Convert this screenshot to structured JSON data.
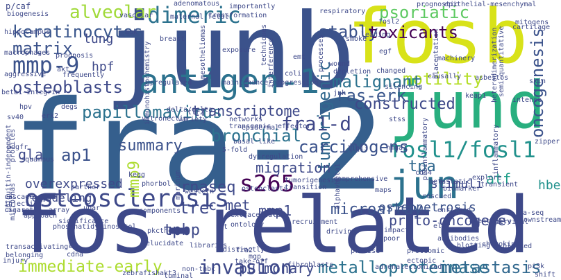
{
  "words": [
    {
      "text": "fra-2",
      "color": "#355f8d"
    },
    {
      "text": "fos-related",
      "color": "#3e4989"
    },
    {
      "text": "junb",
      "color": "#3b528b"
    },
    {
      "text": "fosb",
      "color": "#d8e219"
    },
    {
      "text": "jund",
      "color": "#29af7f"
    },
    {
      "text": "antigen-1",
      "color": "#2c728e"
    },
    {
      "text": "jun",
      "color": "#2c728e"
    },
    {
      "text": "fosl1/fosl1",
      "color": "#21918c"
    },
    {
      "text": "osteosclerosis",
      "color": "#3e4989"
    },
    {
      "text": "dimeric",
      "color": "#2c728e"
    },
    {
      "text": "fra1-d",
      "color": "#3f4788"
    },
    {
      "text": "s265",
      "color": "#440154"
    },
    {
      "text": "mmp-9",
      "color": "#3b528b"
    },
    {
      "text": "alveolar",
      "color": "#a0da39"
    },
    {
      "text": "psoriatic",
      "color": "#5ec962"
    },
    {
      "text": "motility",
      "color": "#b5de2b"
    },
    {
      "text": "tumorigenic",
      "color": "#31688e"
    },
    {
      "text": "invasion",
      "color": "#3e4989"
    },
    {
      "text": "immediate-early",
      "color": "#addc30"
    },
    {
      "text": "metalloproteinase",
      "color": "#2c728e"
    },
    {
      "text": "metastasis",
      "color": "#31688e"
    },
    {
      "text": "keratinocytes",
      "color": "#39568c"
    },
    {
      "text": "stably",
      "color": "#3b528b"
    },
    {
      "text": "toxicants",
      "color": "#440154"
    },
    {
      "text": "matrix",
      "color": "#3b528b"
    },
    {
      "text": "oncogenesis",
      "color": "#3b528b"
    },
    {
      "text": "osteoblasts",
      "color": "#3e4989"
    },
    {
      "text": "carcinogens",
      "color": "#3b528b"
    },
    {
      "text": "papillomavirus",
      "color": "#2c728e"
    },
    {
      "text": "ras-erk",
      "color": "#39568c"
    },
    {
      "text": "malignant",
      "color": "#2c728e"
    },
    {
      "text": "tre",
      "color": "#3e4989"
    },
    {
      "text": "tpa",
      "color": "#31688e"
    },
    {
      "text": "atf",
      "color": "#1f9e89"
    },
    {
      "text": "ap1",
      "color": "#3b528b"
    },
    {
      "text": "transcriptome",
      "color": "#3e4989"
    },
    {
      "text": "microarray",
      "color": "#3b528b"
    },
    {
      "text": "migration",
      "color": "#3e4989"
    },
    {
      "text": "pulmonary",
      "color": "#3e4989"
    },
    {
      "text": "tpbp",
      "color": "#3e4989"
    },
    {
      "text": "bronchial",
      "color": "#2c728e"
    },
    {
      "text": "proto-oncogene",
      "color": "#3e4989"
    },
    {
      "text": "constructed",
      "color": "#3e4989"
    },
    {
      "text": "mmp9",
      "color": "#addc30"
    },
    {
      "text": "summary",
      "color": "#3b528b"
    },
    {
      "text": "rnaseq",
      "color": "#3e4989"
    },
    {
      "text": "c-met",
      "color": "#3e4989"
    },
    {
      "text": "mmp1",
      "color": "#3e4989"
    },
    {
      "text": "hbe",
      "color": "#21918c"
    },
    {
      "text": "stimuli",
      "color": "#3e4989"
    },
    {
      "text": "osteopetrosis",
      "color": "#3b528b"
    },
    {
      "text": "lung",
      "color": "#3e4989"
    },
    {
      "text": "gla",
      "color": "#3e4989"
    },
    {
      "text": "hpf",
      "color": "#3e4989"
    },
    {
      "text": "overexpressed",
      "color": "#3e4989"
    },
    {
      "text": "remodeling",
      "color": "#3e4989"
    },
    {
      "text": "adenomatous",
      "color": "#3e4989"
    },
    {
      "text": "prognostic",
      "color": "#3e4989"
    },
    {
      "text": "epithelial-mesenchymal",
      "color": "#3e4989"
    },
    {
      "text": "p/caf",
      "color": "#3e4989"
    },
    {
      "text": "biogenesis",
      "color": "#3e4989"
    },
    {
      "text": "vascular",
      "color": "#3e4989"
    },
    {
      "text": "maternal-fetal",
      "color": "#3e4989"
    },
    {
      "text": "importantly",
      "color": "#3e4989"
    },
    {
      "text": "respiratory",
      "color": "#3e4989"
    },
    {
      "text": "cartilage",
      "color": "#3e4989"
    },
    {
      "text": "transformation",
      "color": "#3e4989"
    },
    {
      "text": "mitogens",
      "color": "#3e4989"
    },
    {
      "text": "hippocampus",
      "color": "#3e4989"
    },
    {
      "text": "mek",
      "color": "#3e4989"
    },
    {
      "text": "breast",
      "color": "#3e4989"
    },
    {
      "text": "mesotheliomas",
      "color": "#3e4989"
    },
    {
      "text": "techniques",
      "color": "#3e4989"
    },
    {
      "text": "fosl2",
      "color": "#3e4989"
    },
    {
      "text": "smoke",
      "color": "#3e4989"
    },
    {
      "text": "leading",
      "color": "#3e4989"
    },
    {
      "text": "egf",
      "color": "#3e4989"
    },
    {
      "text": "placentation",
      "color": "#3e4989"
    },
    {
      "text": "heterodimerization",
      "color": "#3e4989"
    },
    {
      "text": "semi-quantitative",
      "color": "#3e4989"
    },
    {
      "text": "macrophages",
      "color": "#3e4989"
    },
    {
      "text": "prognosis",
      "color": "#3e4989"
    },
    {
      "text": "exposure",
      "color": "#3e4989"
    },
    {
      "text": "processes",
      "color": "#3e4989"
    },
    {
      "text": "machinery",
      "color": "#3e4989"
    },
    {
      "text": "akt",
      "color": "#3e4989"
    },
    {
      "text": "frequently",
      "color": "#3e4989"
    },
    {
      "text": "immunohistochemistry",
      "color": "#3e4989"
    },
    {
      "text": "interference",
      "color": "#3e4989"
    },
    {
      "text": "emt",
      "color": "#3e4989"
    },
    {
      "text": "aggressive",
      "color": "#3e4989"
    },
    {
      "text": "wound",
      "color": "#3e4989"
    },
    {
      "text": "depletion",
      "color": "#3e4989"
    },
    {
      "text": "changed",
      "color": "#3e4989"
    },
    {
      "text": "causally",
      "color": "#3e4989"
    },
    {
      "text": "skin",
      "color": "#3e4989"
    },
    {
      "text": "beta1-integrin",
      "color": "#3e4989"
    },
    {
      "text": "upregulated",
      "color": "#3e4989"
    },
    {
      "text": "maintenance/progression",
      "color": "#3e4989"
    },
    {
      "text": "asbestos",
      "color": "#3e4989"
    },
    {
      "text": "coli",
      "color": "#3e4989"
    },
    {
      "text": "jnk",
      "color": "#3e4989"
    },
    {
      "text": "keap1",
      "color": "#3e4989"
    },
    {
      "text": "silencing",
      "color": "#3e4989"
    },
    {
      "text": "intense",
      "color": "#3e4989"
    },
    {
      "text": "ubiquitin-independent",
      "color": "#3e4989"
    },
    {
      "text": "hpv",
      "color": "#3e4989"
    },
    {
      "text": "degs",
      "color": "#3e4989"
    },
    {
      "text": "delta/delta",
      "color": "#3e4989"
    },
    {
      "text": "proinflammatory",
      "color": "#3e4989"
    },
    {
      "text": "inflammatory",
      "color": "#3e4989"
    },
    {
      "text": "sv40",
      "color": "#3e4989"
    },
    {
      "text": "erk2",
      "color": "#3e4989"
    },
    {
      "text": "vitronectin",
      "color": "#3e4989"
    },
    {
      "text": "variety",
      "color": "#3e4989"
    },
    {
      "text": "tlr2",
      "color": "#3e4989"
    },
    {
      "text": "networks",
      "color": "#3e4989"
    },
    {
      "text": "profiles",
      "color": "#3e4989"
    },
    {
      "text": "transgenic",
      "color": "#3e4989"
    },
    {
      "text": "stss",
      "color": "#3e4989"
    },
    {
      "text": "effector",
      "color": "#3e4989"
    },
    {
      "text": "zipper",
      "color": "#3e4989"
    },
    {
      "text": "pdgfr",
      "color": "#3e4989"
    },
    {
      "text": "epidermal",
      "color": "#3e4989"
    },
    {
      "text": "basal-like",
      "color": "#3e4989"
    },
    {
      "text": "11q13",
      "color": "#3e4989"
    },
    {
      "text": "hmga1",
      "color": "#3e4989"
    },
    {
      "text": "squamous",
      "color": "#3e4989"
    },
    {
      "text": "5-fold",
      "color": "#3e4989"
    },
    {
      "text": "dysregulation",
      "color": "#3e4989"
    },
    {
      "text": "alphavbeta1",
      "color": "#3e4989"
    },
    {
      "text": "tumorigenesis",
      "color": "#3e4989"
    },
    {
      "text": "cd44",
      "color": "#3e4989"
    },
    {
      "text": "explore",
      "color": "#3e4989"
    },
    {
      "text": "transient",
      "color": "#3e4989"
    },
    {
      "text": "micrornas",
      "color": "#3e4989"
    },
    {
      "text": "kegg",
      "color": "#3e4989"
    },
    {
      "text": "phorbol",
      "color": "#3e4989"
    },
    {
      "text": "marinum",
      "color": "#3e4989"
    },
    {
      "text": "transition",
      "color": "#3e4989"
    },
    {
      "text": "cascades",
      "color": "#3e4989"
    },
    {
      "text": "partner",
      "color": "#3e4989"
    },
    {
      "text": "western",
      "color": "#3e4989"
    },
    {
      "text": "osteoclasts",
      "color": "#3e4989"
    },
    {
      "text": "comprehensive",
      "color": "#3e4989"
    },
    {
      "text": "injection",
      "color": "#3e4989"
    },
    {
      "text": "upar",
      "color": "#3e4989"
    },
    {
      "text": "maps",
      "color": "#3e4989"
    },
    {
      "text": "biomarker",
      "color": "#3e4989"
    },
    {
      "text": "cigarette",
      "color": "#3e4989"
    },
    {
      "text": "array",
      "color": "#3e4989"
    },
    {
      "text": "components",
      "color": "#3e4989"
    },
    {
      "text": "rescued",
      "color": "#3e4989"
    },
    {
      "text": "enriched",
      "color": "#3e4989"
    },
    {
      "text": "eventually",
      "color": "#3e4989"
    },
    {
      "text": "ma-seq",
      "color": "#3e4989"
    },
    {
      "text": "downstream",
      "color": "#3e4989"
    },
    {
      "text": "approach",
      "color": "#3e4989"
    },
    {
      "text": "significance",
      "color": "#3e4989"
    },
    {
      "text": "recruitment",
      "color": "#3e4989"
    },
    {
      "text": "extracellular",
      "color": "#3e4989"
    },
    {
      "text": "rat",
      "color": "#3e4989"
    },
    {
      "text": "elk1",
      "color": "#3e4989"
    },
    {
      "text": "cervical",
      "color": "#3e4989"
    },
    {
      "text": "impact",
      "color": "#3e4989"
    },
    {
      "text": "phosphatidylinositol",
      "color": "#3e4989"
    },
    {
      "text": "pkctheta",
      "color": "#3e4989"
    },
    {
      "text": "ontology",
      "color": "#3e4989"
    },
    {
      "text": "poor",
      "color": "#3e4989"
    },
    {
      "text": "transactivating",
      "color": "#3e4989"
    },
    {
      "text": "mms",
      "color": "#3e4989"
    },
    {
      "text": "elucidate",
      "color": "#3e4989"
    },
    {
      "text": "libraries",
      "color": "#3e4989"
    },
    {
      "text": "distinctly",
      "color": "#3e4989"
    },
    {
      "text": "proteomic",
      "color": "#3e4989"
    },
    {
      "text": "blotting",
      "color": "#3e4989"
    },
    {
      "text": "belonging",
      "color": "#3e4989"
    },
    {
      "text": "cdna",
      "color": "#3e4989"
    },
    {
      "text": "fra2",
      "color": "#3e4989"
    },
    {
      "text": "mgp",
      "color": "#3e4989"
    },
    {
      "text": "precise",
      "color": "#3e4989"
    },
    {
      "text": "ectopic",
      "color": "#3e4989"
    },
    {
      "text": "chemokines",
      "color": "#3e4989"
    },
    {
      "text": "blocked",
      "color": "#3e4989"
    },
    {
      "text": "injury",
      "color": "#3e4989"
    },
    {
      "text": "non-tnbc",
      "color": "#3e4989"
    },
    {
      "text": "antibodies",
      "color": "#3e4989"
    },
    {
      "text": "akt3",
      "color": "#3e4989"
    },
    {
      "text": "take-off",
      "color": "#3e4989"
    },
    {
      "text": "adrenalectomized",
      "color": "#3e4989"
    },
    {
      "text": "pi3k",
      "color": "#3e4989"
    },
    {
      "text": "zebrafish",
      "color": "#3e4989"
    },
    {
      "text": "luminal",
      "color": "#3e4989"
    },
    {
      "text": "fibroblasts",
      "color": "#3e4989"
    },
    {
      "text": "driving",
      "color": "#3e4989"
    },
    {
      "text": "shift",
      "color": "#3e4989"
    },
    {
      "text": "metastatic",
      "color": "#3e4989"
    }
  ]
}
